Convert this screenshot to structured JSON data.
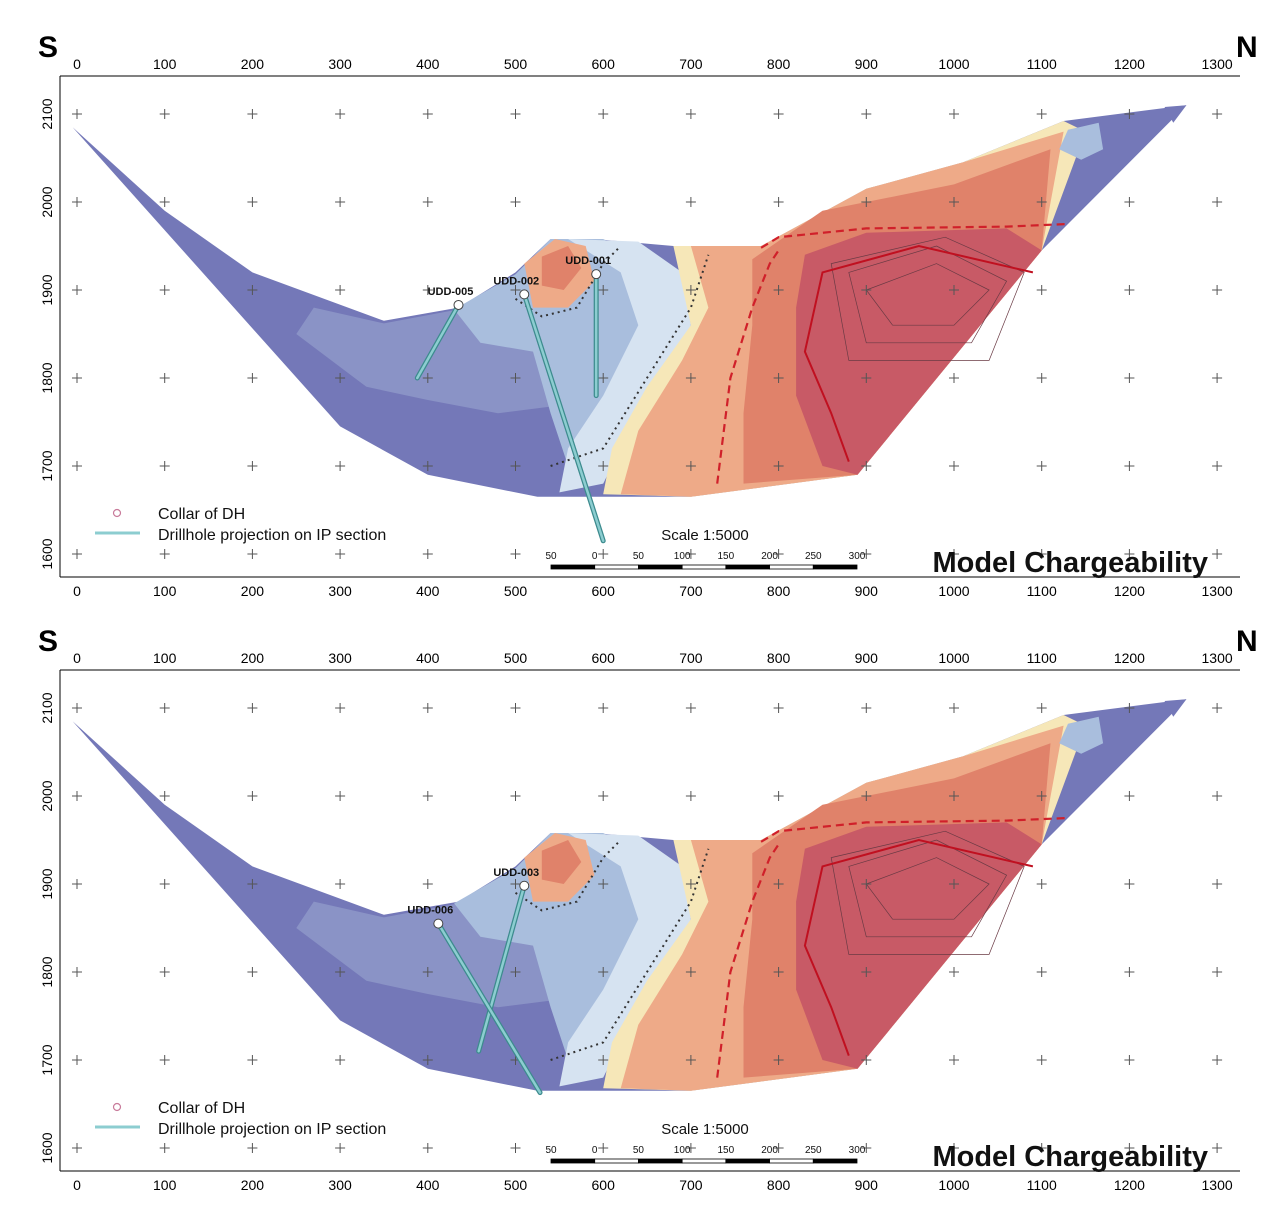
{
  "panels": [
    {
      "id": "top",
      "south_label": "S",
      "north_label": "N",
      "x_ticks": [
        "0",
        "100",
        "200",
        "300",
        "400",
        "500",
        "600",
        "700",
        "800",
        "900",
        "1000",
        "1100",
        "1200",
        "1300"
      ],
      "y_ticks": [
        "2100",
        "2000",
        "1900",
        "1800",
        "1700",
        "1600"
      ],
      "title": "Model Chargeability",
      "scale_text": "Scale 1:5000",
      "scale_ticks": [
        "50",
        "0",
        "50",
        "100",
        "150",
        "200",
        "250",
        "300"
      ],
      "legend": {
        "collar": "Collar of DH",
        "projection": "Drillhole projection on IP section"
      },
      "drillholes": [
        {
          "label": "UDD-005",
          "collar": [
            435,
            1883
          ],
          "end": [
            388,
            1800
          ]
        },
        {
          "label": "UDD-002",
          "collar": [
            510,
            1895
          ],
          "end": [
            600,
            1615
          ]
        },
        {
          "label": "UDD-001",
          "collar": [
            592,
            1918
          ],
          "end": [
            592,
            1780
          ]
        }
      ]
    },
    {
      "id": "bottom",
      "south_label": "S",
      "north_label": "N",
      "x_ticks": [
        "0",
        "100",
        "200",
        "300",
        "400",
        "500",
        "600",
        "700",
        "800",
        "900",
        "1000",
        "1100",
        "1200",
        "1300"
      ],
      "y_ticks": [
        "2100",
        "2000",
        "1900",
        "1800",
        "1700",
        "1600"
      ],
      "title": "Model Chargeability",
      "scale_text": "Scale 1:5000",
      "scale_ticks": [
        "50",
        "0",
        "50",
        "100",
        "150",
        "200",
        "250",
        "300"
      ],
      "legend": {
        "collar": "Collar of DH",
        "projection": "Drillhole projection on IP section"
      },
      "drillholes": [
        {
          "label": "UDD-003",
          "collar": [
            510,
            1898
          ],
          "end": [
            458,
            1710
          ]
        },
        {
          "label": "UDD-006",
          "collar": [
            412,
            1855
          ],
          "end": [
            528,
            1663
          ]
        }
      ]
    }
  ],
  "colors": {
    "low": "#7478b8",
    "low2": "#8d96c8",
    "mid_blue": "#a9bedd",
    "pale_blue": "#d6e3f1",
    "pale_yellow": "#f6e7b8",
    "orange": "#eeaa88",
    "red_orange": "#e0826a",
    "high": "#c85a66",
    "drillhole": "#8ccdd0"
  }
}
